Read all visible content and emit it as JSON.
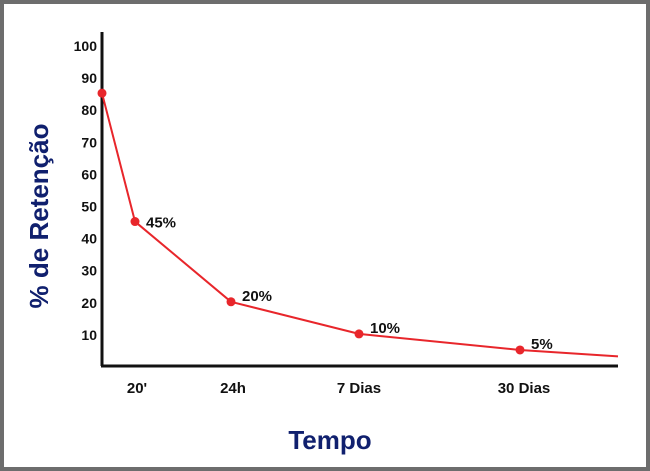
{
  "chart_data": {
    "type": "line",
    "xlabel": "Tempo",
    "ylabel": "% de Retenção",
    "yticks": [
      10,
      20,
      30,
      40,
      50,
      60,
      70,
      80,
      90,
      100
    ],
    "ylim": [
      0,
      100
    ],
    "xticks": [
      "20'",
      "24h",
      "7 Dias",
      "30 Dias"
    ],
    "series": [
      {
        "values": [
          85,
          45,
          20,
          10,
          5,
          3
        ],
        "labels": [
          "",
          "45%",
          "20%",
          "10%",
          "5%",
          ""
        ]
      }
    ],
    "colors": {
      "line": "#e8262b",
      "axis": "#111111",
      "title": "#10206e"
    }
  }
}
